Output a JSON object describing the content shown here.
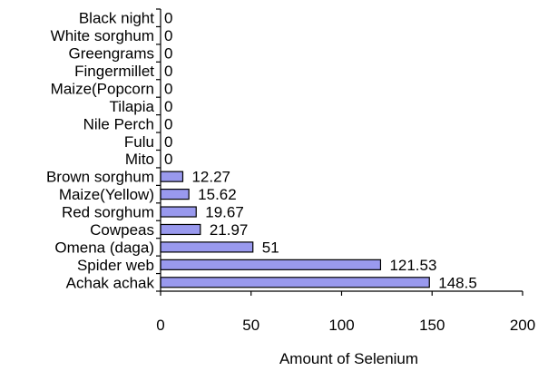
{
  "chart_data": {
    "type": "bar",
    "orientation": "horizontal",
    "categories": [
      "Achak achak",
      "Spider web",
      "Omena (daga)",
      "Cowpeas",
      "Red sorghum",
      "Maize(Yellow)",
      "Brown sorghum",
      "Mito",
      "Fulu",
      "Nile Perch",
      "Tilapia",
      "Maize(Popcorn",
      "Fingermillet",
      "Greengrams",
      "White sorghum",
      "Black night"
    ],
    "values": [
      148.5,
      121.53,
      51,
      21.97,
      19.67,
      15.62,
      12.27,
      0,
      0,
      0,
      0,
      0,
      0,
      0,
      0,
      0
    ],
    "value_labels": [
      "148.5",
      "121.53",
      "51",
      "21.97",
      "19.67",
      "15.62",
      "12.27",
      "0",
      "0",
      "0",
      "0",
      "0",
      "0",
      "0",
      "0",
      "0"
    ],
    "xlabel": "Amount of Selenium",
    "ylabel": "",
    "xlim": [
      0,
      200
    ],
    "xticks": [
      0,
      50,
      100,
      150,
      200
    ],
    "xtick_labels": [
      "0",
      "50",
      "100",
      "150",
      "200"
    ],
    "grid": false,
    "legend": "none",
    "bar_color": "#9999ee",
    "bar_edge_color": "#000000"
  }
}
